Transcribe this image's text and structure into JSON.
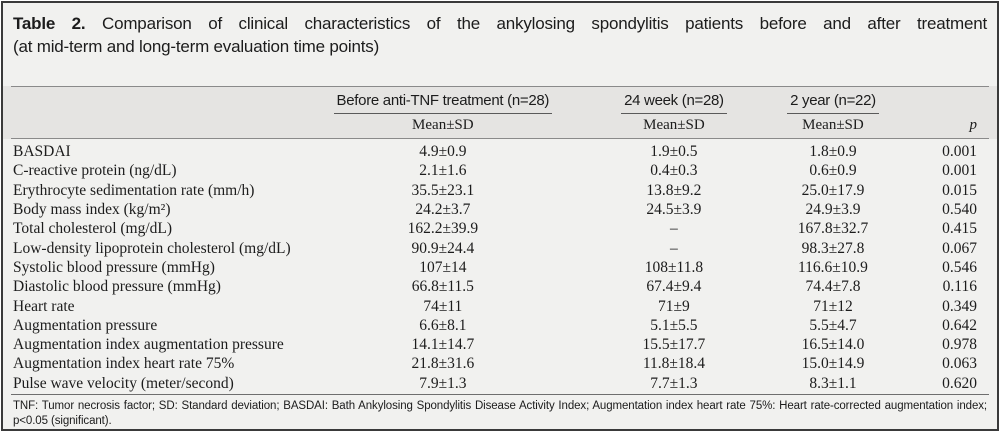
{
  "caption": {
    "label": "Table 2.",
    "line1": "Comparison of clinical characteristics of the ankylosing spondylitis patients before and after treatment",
    "line2": "(at mid-term and long-term evaluation time points)"
  },
  "header": {
    "groups": [
      {
        "label": "Before anti-TNF treatment (n=28)",
        "sub": "Mean±SD"
      },
      {
        "label": "24 week (n=28)",
        "sub": "Mean±SD"
      },
      {
        "label": "2 year (n=22)",
        "sub": "Mean±SD"
      }
    ],
    "p_label": "p"
  },
  "rows": [
    {
      "label": "BASDAI",
      "before": "4.9±0.9",
      "week24": "1.9±0.5",
      "year2": "1.8±0.9",
      "p": "0.001"
    },
    {
      "label": "C-reactive protein (ng/dL)",
      "before": "2.1±1.6",
      "week24": "0.4±0.3",
      "year2": "0.6±0.9",
      "p": "0.001"
    },
    {
      "label": "Erythrocyte sedimentation rate (mm/h)",
      "before": "35.5±23.1",
      "week24": "13.8±9.2",
      "year2": "25.0±17.9",
      "p": "0.015"
    },
    {
      "label": "Body mass index (kg/m²)",
      "before": "24.2±3.7",
      "week24": "24.5±3.9",
      "year2": "24.9±3.9",
      "p": "0.540"
    },
    {
      "label": "Total cholesterol (mg/dL)",
      "before": "162.2±39.9",
      "week24": "–",
      "year2": "167.8±32.7",
      "p": "0.415"
    },
    {
      "label": "Low-density lipoprotein cholesterol (mg/dL)",
      "before": "90.9±24.4",
      "week24": "–",
      "year2": "98.3±27.8",
      "p": "0.067"
    },
    {
      "label": "Systolic blood pressure (mmHg)",
      "before": "107±14",
      "week24": "108±11.8",
      "year2": "116.6±10.9",
      "p": "0.546"
    },
    {
      "label": "Diastolic blood pressure (mmHg)",
      "before": "66.8±11.5",
      "week24": "67.4±9.4",
      "year2": "74.4±7.8",
      "p": "0.116"
    },
    {
      "label": "Heart rate",
      "before": "74±11",
      "week24": "71±9",
      "year2": "71±12",
      "p": "0.349"
    },
    {
      "label": "Augmentation pressure",
      "before": "6.6±8.1",
      "week24": "5.1±5.5",
      "year2": "5.5±4.7",
      "p": "0.642"
    },
    {
      "label": "Augmentation index augmentation pressure",
      "before": "14.1±14.7",
      "week24": "15.5±17.7",
      "year2": "16.5±14.0",
      "p": "0.978"
    },
    {
      "label": "Augmentation index heart rate 75%",
      "before": "21.8±31.6",
      "week24": "11.8±18.4",
      "year2": "15.0±14.9",
      "p": "0.063"
    },
    {
      "label": "Pulse wave velocity (meter/second)",
      "before": "7.9±1.3",
      "week24": "7.7±1.3",
      "year2": "8.3±1.1",
      "p": "0.620"
    }
  ],
  "footnote": "TNF: Tumor necrosis factor; SD: Standard deviation; BASDAI: Bath Ankylosing Spondylitis Disease Activity Index; Augmentation index heart rate 75%: Heart rate-corrected augmentation index; p<0.05 (significant).",
  "colors": {
    "card_bg": "#f1f1ef",
    "band_bg": "#e5e4e2",
    "border": "#3a3a3a",
    "rule": "#8a8a8a",
    "text": "#1c1c1c"
  }
}
